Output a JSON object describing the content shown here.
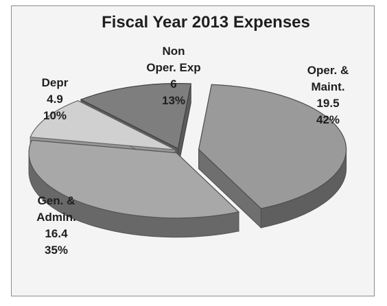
{
  "chart_data": {
    "type": "pie",
    "title": "Fiscal Year 2013 Expenses",
    "slices": [
      {
        "label_lines": [
          "Oper. &",
          "Maint."
        ],
        "value": 19.5,
        "value_text": "19.5",
        "percent_text": "42%",
        "color": "#9a9a9a"
      },
      {
        "label_lines": [
          "Gen. &",
          "Admin."
        ],
        "value": 16.4,
        "value_text": "16.4",
        "percent_text": "35%",
        "color": "#a8a8a8"
      },
      {
        "label_lines": [
          "Depr"
        ],
        "value": 4.9,
        "value_text": "4.9",
        "percent_text": "10%",
        "color": "#d0d0d0"
      },
      {
        "label_lines": [
          "Non",
          "Oper. Exp"
        ],
        "value": 6,
        "value_text": "6",
        "percent_text": "13%",
        "color": "#7e7e7e"
      }
    ],
    "exploded": true,
    "style": "3d"
  }
}
